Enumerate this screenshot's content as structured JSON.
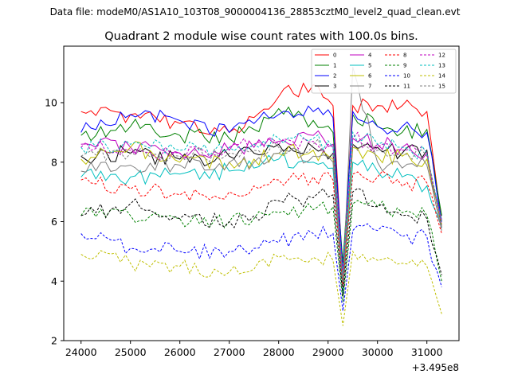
{
  "suptitle": "Data file: modeM0/AS1A10_103T08_9000004136_28853cztM0_level2_quad_clean.evt",
  "chart_data": {
    "type": "line",
    "title": "Quadrant 2 module wise count rates with 100.0s bins.",
    "xlabel": "",
    "ylabel": "",
    "x_offset_label": "+3.495e8",
    "xlim": [
      23650,
      31650
    ],
    "ylim": [
      2,
      11.9
    ],
    "xticks": [
      24000,
      25000,
      26000,
      27000,
      28000,
      29000,
      30000,
      31000
    ],
    "yticks": [
      2,
      4,
      6,
      8,
      10
    ],
    "x_start": 24000,
    "x_step": 100,
    "legend_position": "top-right",
    "series": [
      {
        "name": "0",
        "color": "#ff0000",
        "dash": "solid",
        "keys": [
          [
            24000,
            9.7
          ],
          [
            25000,
            9.6
          ],
          [
            26000,
            9.3
          ],
          [
            27000,
            9.0
          ],
          [
            27500,
            9.5
          ],
          [
            28000,
            10.2
          ],
          [
            28700,
            10.6
          ],
          [
            29100,
            9.9
          ],
          [
            29300,
            4.3
          ],
          [
            29500,
            9.9
          ],
          [
            30000,
            9.9
          ],
          [
            30500,
            9.9
          ],
          [
            31000,
            9.7
          ],
          [
            31300,
            6.0
          ]
        ]
      },
      {
        "name": "1",
        "color": "#008000",
        "dash": "solid",
        "keys": [
          [
            24000,
            8.9
          ],
          [
            25000,
            9.2
          ],
          [
            26000,
            8.9
          ],
          [
            27000,
            8.8
          ],
          [
            27500,
            9.1
          ],
          [
            28000,
            9.8
          ],
          [
            28700,
            9.4
          ],
          [
            29100,
            9.0
          ],
          [
            29300,
            4.6
          ],
          [
            29500,
            9.6
          ],
          [
            30000,
            9.2
          ],
          [
            30500,
            9.0
          ],
          [
            31000,
            9.1
          ],
          [
            31300,
            6.2
          ]
        ]
      },
      {
        "name": "2",
        "color": "#0000ff",
        "dash": "solid",
        "keys": [
          [
            24000,
            9.0
          ],
          [
            25000,
            9.6
          ],
          [
            26000,
            9.4
          ],
          [
            27000,
            9.0
          ],
          [
            27500,
            9.3
          ],
          [
            28000,
            9.6
          ],
          [
            28700,
            9.7
          ],
          [
            29100,
            9.5
          ],
          [
            29300,
            4.3
          ],
          [
            29500,
            9.7
          ],
          [
            30000,
            9.2
          ],
          [
            30500,
            9.2
          ],
          [
            31000,
            9.0
          ],
          [
            31300,
            6.0
          ]
        ]
      },
      {
        "name": "3",
        "color": "#000000",
        "dash": "solid",
        "keys": [
          [
            24000,
            8.2
          ],
          [
            25000,
            8.3
          ],
          [
            26000,
            8.1
          ],
          [
            27000,
            8.2
          ],
          [
            27500,
            8.3
          ],
          [
            28000,
            8.6
          ],
          [
            28700,
            8.5
          ],
          [
            29100,
            8.3
          ],
          [
            29300,
            3.8
          ],
          [
            29500,
            8.6
          ],
          [
            30000,
            8.5
          ],
          [
            30500,
            8.3
          ],
          [
            31000,
            8.4
          ],
          [
            31300,
            5.8
          ]
        ]
      },
      {
        "name": "4",
        "color": "#bf00bf",
        "dash": "solid",
        "keys": [
          [
            24000,
            8.6
          ],
          [
            25000,
            8.5
          ],
          [
            26000,
            8.3
          ],
          [
            27000,
            8.4
          ],
          [
            27500,
            8.5
          ],
          [
            28000,
            8.7
          ],
          [
            28700,
            8.9
          ],
          [
            29100,
            8.6
          ],
          [
            29300,
            4.2
          ],
          [
            29500,
            8.8
          ],
          [
            30000,
            8.6
          ],
          [
            30500,
            8.5
          ],
          [
            31000,
            8.3
          ],
          [
            31300,
            6.0
          ]
        ]
      },
      {
        "name": "5",
        "color": "#00bfbf",
        "dash": "solid",
        "keys": [
          [
            24000,
            7.5
          ],
          [
            25000,
            7.5
          ],
          [
            26000,
            7.6
          ],
          [
            27000,
            7.7
          ],
          [
            27500,
            7.8
          ],
          [
            28000,
            8.1
          ],
          [
            28700,
            8.0
          ],
          [
            29100,
            7.8
          ],
          [
            29300,
            3.6
          ],
          [
            29500,
            8.0
          ],
          [
            30000,
            7.7
          ],
          [
            30500,
            7.5
          ],
          [
            31000,
            7.2
          ],
          [
            31300,
            5.8
          ]
        ]
      },
      {
        "name": "6",
        "color": "#bfbf00",
        "dash": "solid",
        "keys": [
          [
            24000,
            8.1
          ],
          [
            25000,
            8.5
          ],
          [
            26000,
            8.0
          ],
          [
            27000,
            8.0
          ],
          [
            27500,
            8.1
          ],
          [
            28000,
            8.3
          ],
          [
            28700,
            8.4
          ],
          [
            29100,
            8.1
          ],
          [
            29300,
            3.9
          ],
          [
            29500,
            8.5
          ],
          [
            30000,
            8.2
          ],
          [
            30500,
            8.2
          ],
          [
            31000,
            8.1
          ],
          [
            31300,
            5.9
          ]
        ]
      },
      {
        "name": "7",
        "color": "#808080",
        "dash": "solid",
        "keys": [
          [
            24000,
            7.7
          ],
          [
            25000,
            7.9
          ],
          [
            26000,
            7.9
          ],
          [
            27000,
            8.0
          ],
          [
            27500,
            8.0
          ],
          [
            28000,
            8.3
          ],
          [
            28700,
            8.2
          ],
          [
            29100,
            8.0
          ],
          [
            29300,
            3.9
          ],
          [
            29500,
            11.2
          ],
          [
            30000,
            8.0
          ],
          [
            30500,
            7.8
          ],
          [
            31000,
            7.9
          ],
          [
            31300,
            5.7
          ]
        ]
      },
      {
        "name": "8",
        "color": "#ff0000",
        "dash": "dashed",
        "keys": [
          [
            24000,
            7.4
          ],
          [
            25000,
            7.1
          ],
          [
            26000,
            6.9
          ],
          [
            27000,
            7.0
          ],
          [
            27500,
            7.2
          ],
          [
            28000,
            7.4
          ],
          [
            28700,
            7.5
          ],
          [
            29100,
            7.4
          ],
          [
            29300,
            3.8
          ],
          [
            29500,
            7.6
          ],
          [
            30000,
            7.5
          ],
          [
            30500,
            7.2
          ],
          [
            31000,
            7.3
          ],
          [
            31300,
            5.6
          ]
        ]
      },
      {
        "name": "9",
        "color": "#008000",
        "dash": "dashed",
        "keys": [
          [
            24000,
            6.2
          ],
          [
            25000,
            6.2
          ],
          [
            26000,
            6.1
          ],
          [
            27000,
            6.0
          ],
          [
            27500,
            6.1
          ],
          [
            28000,
            6.3
          ],
          [
            28700,
            6.4
          ],
          [
            29100,
            6.5
          ],
          [
            29300,
            3.3
          ],
          [
            29500,
            6.6
          ],
          [
            30000,
            6.5
          ],
          [
            30500,
            6.3
          ],
          [
            31000,
            6.2
          ],
          [
            31300,
            4.0
          ]
        ]
      },
      {
        "name": "10",
        "color": "#0000ff",
        "dash": "dashed",
        "keys": [
          [
            24000,
            5.6
          ],
          [
            25000,
            5.1
          ],
          [
            26000,
            5.0
          ],
          [
            27000,
            5.0
          ],
          [
            27500,
            5.1
          ],
          [
            28000,
            5.3
          ],
          [
            28700,
            5.6
          ],
          [
            29100,
            5.6
          ],
          [
            29300,
            3.0
          ],
          [
            29500,
            5.7
          ],
          [
            30000,
            5.7
          ],
          [
            30500,
            5.5
          ],
          [
            31000,
            5.5
          ],
          [
            31300,
            3.8
          ]
        ]
      },
      {
        "name": "11",
        "color": "#000000",
        "dash": "dashed",
        "keys": [
          [
            24000,
            6.2
          ],
          [
            25000,
            6.6
          ],
          [
            26000,
            6.1
          ],
          [
            27000,
            6.0
          ],
          [
            27500,
            6.2
          ],
          [
            28000,
            6.7
          ],
          [
            28700,
            6.8
          ],
          [
            29100,
            6.9
          ],
          [
            29300,
            3.5
          ],
          [
            29500,
            7.0
          ],
          [
            30000,
            6.5
          ],
          [
            30500,
            6.2
          ],
          [
            31000,
            6.1
          ],
          [
            31300,
            4.2
          ]
        ]
      },
      {
        "name": "12",
        "color": "#bf00bf",
        "dash": "dashed",
        "keys": [
          [
            24000,
            8.5
          ],
          [
            25000,
            8.4
          ],
          [
            26000,
            8.3
          ],
          [
            27000,
            8.5
          ],
          [
            27500,
            8.6
          ],
          [
            28000,
            8.6
          ],
          [
            28700,
            8.7
          ],
          [
            29100,
            8.5
          ],
          [
            29300,
            4.2
          ],
          [
            29500,
            8.8
          ],
          [
            30000,
            8.5
          ],
          [
            30500,
            8.4
          ],
          [
            31000,
            8.3
          ],
          [
            31300,
            5.9
          ]
        ]
      },
      {
        "name": "13",
        "color": "#00bfbf",
        "dash": "dashed",
        "keys": [
          [
            24000,
            8.5
          ],
          [
            25000,
            8.6
          ],
          [
            26000,
            8.4
          ],
          [
            27000,
            8.5
          ],
          [
            27500,
            8.6
          ],
          [
            28000,
            8.8
          ],
          [
            28700,
            8.8
          ],
          [
            29100,
            8.5
          ],
          [
            29300,
            4.2
          ],
          [
            29500,
            9.0
          ],
          [
            30000,
            8.6
          ],
          [
            30500,
            8.5
          ],
          [
            31000,
            8.3
          ],
          [
            31300,
            6.0
          ]
        ]
      },
      {
        "name": "14",
        "color": "#bfbf00",
        "dash": "dashed",
        "keys": [
          [
            24000,
            4.9
          ],
          [
            25000,
            4.6
          ],
          [
            26000,
            4.5
          ],
          [
            27000,
            4.3
          ],
          [
            27500,
            4.4
          ],
          [
            28000,
            4.8
          ],
          [
            28700,
            4.8
          ],
          [
            29100,
            4.7
          ],
          [
            29300,
            2.5
          ],
          [
            29500,
            5.0
          ],
          [
            30000,
            4.7
          ],
          [
            30500,
            4.6
          ],
          [
            31000,
            4.5
          ],
          [
            31300,
            2.9
          ]
        ]
      },
      {
        "name": "15",
        "color": "#808080",
        "dash": "dashed",
        "keys": [
          [
            24000,
            8.2
          ],
          [
            25000,
            8.3
          ],
          [
            26000,
            8.2
          ],
          [
            27000,
            8.3
          ],
          [
            27500,
            8.4
          ],
          [
            28000,
            8.5
          ],
          [
            28700,
            8.6
          ],
          [
            29100,
            8.3
          ],
          [
            29300,
            4.0
          ],
          [
            29500,
            8.6
          ],
          [
            30000,
            8.4
          ],
          [
            30500,
            8.3
          ],
          [
            31000,
            8.2
          ],
          [
            31300,
            5.8
          ]
        ]
      }
    ]
  }
}
